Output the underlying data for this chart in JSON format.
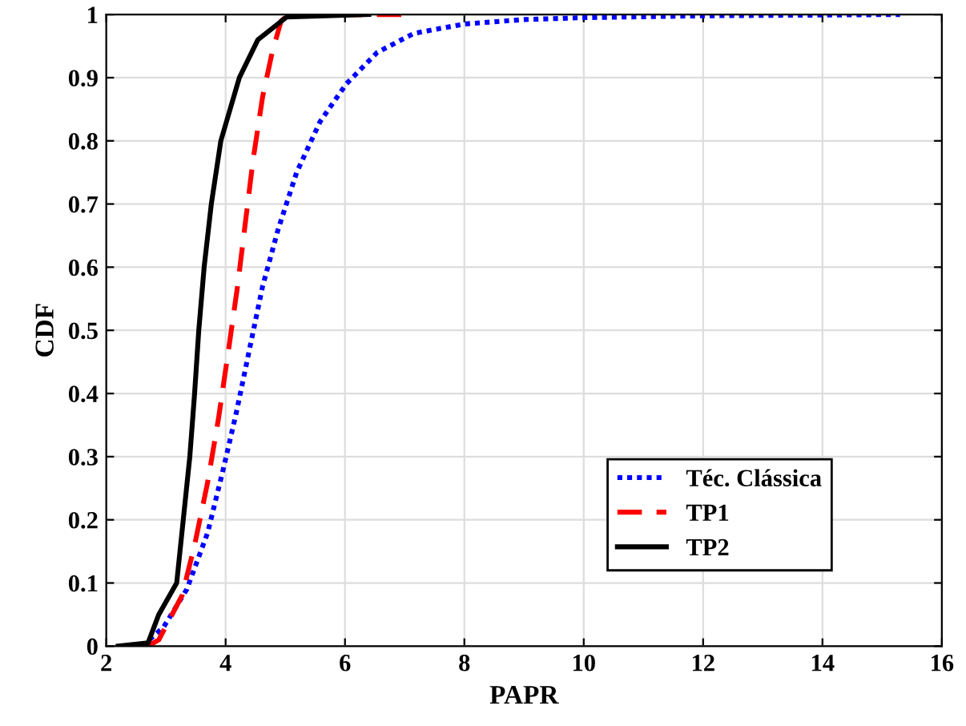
{
  "chart_data": {
    "type": "line",
    "xlabel": "PAPR",
    "ylabel": "CDF",
    "xlim": [
      2,
      16
    ],
    "ylim": [
      0,
      1
    ],
    "xticks": [
      2,
      4,
      6,
      8,
      10,
      12,
      14,
      16
    ],
    "yticks": [
      0,
      0.1,
      0.2,
      0.3,
      0.4,
      0.5,
      0.6,
      0.7,
      0.8,
      0.9,
      1
    ],
    "grid": true,
    "legend": "bottom right",
    "marker": "none",
    "series": [
      {
        "name": "Téc. Clássica",
        "color": "#0000ff",
        "line_style": "dotted",
        "x": [
          2.6,
          2.96,
          3.35,
          3.7,
          3.96,
          4.18,
          4.4,
          4.62,
          4.88,
          5.19,
          5.58,
          6.02,
          6.54,
          7.15,
          8,
          9,
          10,
          12,
          15.3
        ],
        "values": [
          0,
          0.03,
          0.09,
          0.18,
          0.28,
          0.37,
          0.47,
          0.57,
          0.66,
          0.75,
          0.83,
          0.89,
          0.94,
          0.97,
          0.985,
          0.992,
          0.995,
          0.998,
          1
        ]
      },
      {
        "name": "TP1",
        "color": "#ff0000",
        "line_style": "dashed",
        "x": [
          2.7,
          2.88,
          3.27,
          3.48,
          3.7,
          3.88,
          4.05,
          4.2,
          4.33,
          4.46,
          4.62,
          4.78,
          4.93,
          5.06,
          7.0
        ],
        "values": [
          0,
          0.01,
          0.08,
          0.16,
          0.26,
          0.36,
          0.47,
          0.57,
          0.67,
          0.77,
          0.87,
          0.94,
          0.99,
          1,
          1
        ]
      },
      {
        "name": "TP2",
        "color": "#000000",
        "line_style": "solid",
        "x": [
          2.2,
          2.7,
          2.88,
          3.18,
          3.29,
          3.4,
          3.48,
          3.55,
          3.64,
          3.76,
          3.92,
          4.23,
          4.54,
          5.02,
          6.4
        ],
        "values": [
          0,
          0.005,
          0.05,
          0.1,
          0.2,
          0.3,
          0.4,
          0.5,
          0.6,
          0.7,
          0.8,
          0.9,
          0.96,
          0.996,
          1
        ]
      }
    ]
  }
}
